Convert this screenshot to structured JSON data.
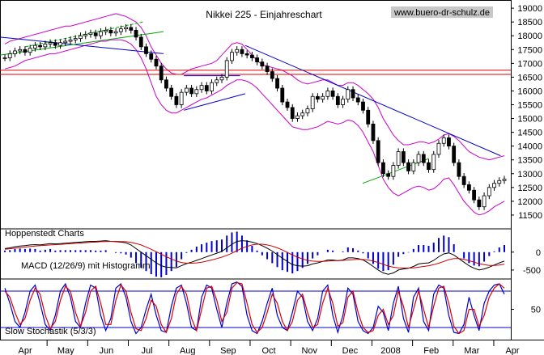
{
  "chart_data": {
    "type": "line",
    "title": "Nikkei 225 - Einjahreschart",
    "watermark": "www.buero-dr-schulz.de",
    "source_label": "Hoppenstedt Charts",
    "months": [
      "Apr",
      "May",
      "Jun",
      "Jul",
      "Aug",
      "Sep",
      "Oct",
      "Nov",
      "Dec",
      "2008",
      "Feb",
      "Mar",
      "Apr"
    ],
    "price_panel": {
      "ylim": [
        11000,
        19150
      ],
      "ticks": [
        19000,
        18500,
        18000,
        17500,
        17000,
        16500,
        16000,
        15500,
        15000,
        14500,
        14000,
        13500,
        13000,
        12500,
        12000,
        11500
      ],
      "tick_labels": [
        "19000",
        "18500",
        "18000",
        "17500",
        "17000",
        "16500",
        "16000",
        "15500",
        "15000",
        "14500",
        "14000",
        "13500",
        "13000",
        "12500",
        "12000",
        "11500"
      ],
      "colors": {
        "candles": "#000000",
        "bands": "#cc00cc",
        "trend_upper": "#0000cc",
        "trend_lower": "#00aa00",
        "support": "#dd0000"
      },
      "support_levels": [
        16750,
        16600
      ],
      "trendlines": [
        {
          "color": "#0000cc",
          "points": [
            [
              0,
              17950
            ],
            [
              0.32,
              17350
            ]
          ]
        },
        {
          "color": "#00aa00",
          "points": [
            [
              0,
              17300
            ],
            [
              0.32,
              18150
            ]
          ]
        },
        {
          "color": "#00aa00",
          "dash": true,
          "points": [
            [
              0.05,
              17600
            ],
            [
              0.28,
              18500
            ]
          ]
        },
        {
          "color": "#0000cc",
          "points": [
            [
              0.36,
              15300
            ],
            [
              0.48,
              15900
            ]
          ]
        },
        {
          "color": "#0000cc",
          "points": [
            [
              0.36,
              16550
            ],
            [
              0.47,
              16550
            ]
          ]
        },
        {
          "color": "#0000cc",
          "points": [
            [
              0.48,
              17650
            ],
            [
              0.98,
              13650
            ]
          ]
        },
        {
          "color": "#00aa00",
          "points": [
            [
              0.71,
              12650
            ],
            [
              0.84,
              13550
            ]
          ]
        }
      ],
      "close": [
        17200,
        17350,
        17450,
        17500,
        17400,
        17550,
        17650,
        17600,
        17700,
        17750,
        17650,
        17750,
        17800,
        17850,
        17900,
        18000,
        18050,
        18100,
        18000,
        18150,
        18200,
        18100,
        18150,
        18250,
        18300,
        18200,
        17950,
        17600,
        17350,
        17150,
        16900,
        16400,
        16100,
        15800,
        15500,
        15950,
        16100,
        15900,
        16050,
        16200,
        16000,
        16300,
        16400,
        16500,
        17100,
        17400,
        17500,
        17350,
        17300,
        17200,
        17050,
        16900,
        16700,
        16450,
        16100,
        15600,
        15400,
        15000,
        15100,
        15200,
        15350,
        15800,
        15700,
        15800,
        16000,
        15800,
        15500,
        15700,
        16050,
        15750,
        15600,
        15300,
        14800,
        14200,
        13400,
        13000,
        12900,
        13300,
        13800,
        13400,
        13100,
        13400,
        13700,
        13400,
        13150,
        13700,
        14100,
        14300,
        14000,
        13400,
        12900,
        12600,
        12400,
        12050,
        11800,
        12200,
        12500,
        12650,
        12750,
        12800
      ],
      "upper_band": [
        17700,
        17800,
        17850,
        17900,
        17950,
        18000,
        18050,
        18100,
        18150,
        18200,
        18250,
        18300,
        18350,
        18350,
        18400,
        18450,
        18500,
        18550,
        18600,
        18650,
        18700,
        18750,
        18800,
        18750,
        18700,
        18600,
        18500,
        18300,
        18000,
        17600,
        17300,
        17000,
        16800,
        16650,
        16600,
        16600,
        16700,
        16800,
        16850,
        16900,
        16950,
        17000,
        17100,
        17300,
        17500,
        17700,
        17750,
        17700,
        17500,
        17300,
        17100,
        16950,
        16900,
        16850,
        16800,
        16750,
        16650,
        16550,
        16400,
        16300,
        16250,
        16300,
        16350,
        16400,
        16400,
        16300,
        16200,
        16200,
        16300,
        16300,
        16200,
        16050,
        15900,
        15700,
        15400,
        15000,
        14700,
        14400,
        14200,
        14050,
        14050,
        14100,
        14150,
        14150,
        14100,
        14150,
        14250,
        14400,
        14450,
        14350,
        14200,
        14000,
        13800,
        13700,
        13600,
        13550,
        13500,
        13550,
        13600,
        13650
      ],
      "lower_band": [
        16800,
        16850,
        16900,
        17000,
        17100,
        17150,
        17200,
        17250,
        17300,
        17350,
        17350,
        17400,
        17450,
        17500,
        17550,
        17600,
        17650,
        17700,
        17750,
        17800,
        17800,
        17850,
        17850,
        17850,
        17800,
        17700,
        17500,
        17200,
        16800,
        16300,
        15800,
        15500,
        15300,
        15200,
        15200,
        15300,
        15400,
        15500,
        15600,
        15700,
        15750,
        15850,
        15950,
        16050,
        16200,
        16300,
        16400,
        16400,
        16350,
        16250,
        16100,
        15900,
        15700,
        15500,
        15300,
        15100,
        14900,
        14700,
        14650,
        14600,
        14600,
        14650,
        14700,
        14800,
        14900,
        14850,
        14800,
        14850,
        14950,
        14900,
        14750,
        14500,
        14150,
        13800,
        13300,
        12800,
        12500,
        12300,
        12200,
        12300,
        12400,
        12500,
        12550,
        12500,
        12400,
        12450,
        12600,
        12800,
        12850,
        12600,
        12300,
        12000,
        11800,
        11600,
        11500,
        11550,
        11650,
        11800,
        11900,
        12000
      ]
    },
    "macd_panel": {
      "label": "MACD (12/26/9) mit Histogramm",
      "ticks": [
        0,
        -500
      ],
      "tick_labels": [
        "0",
        "-500"
      ],
      "ylim": [
        -750,
        650
      ],
      "colors": {
        "macd": "#000000",
        "signal": "#cc0000",
        "hist": "#0000cc"
      },
      "macd": [
        100,
        120,
        150,
        170,
        180,
        200,
        210,
        200,
        220,
        240,
        230,
        240,
        250,
        260,
        270,
        280,
        290,
        300,
        300,
        310,
        320,
        300,
        290,
        280,
        260,
        200,
        100,
        0,
        -100,
        -200,
        -300,
        -380,
        -420,
        -430,
        -440,
        -380,
        -320,
        -280,
        -230,
        -180,
        -130,
        -80,
        -30,
        20,
        120,
        220,
        300,
        320,
        310,
        280,
        240,
        180,
        110,
        30,
        -70,
        -170,
        -260,
        -350,
        -380,
        -390,
        -380,
        -330,
        -300,
        -260,
        -220,
        -220,
        -240,
        -220,
        -160,
        -160,
        -180,
        -220,
        -300,
        -400,
        -500,
        -580,
        -620,
        -580,
        -500,
        -470,
        -450,
        -400,
        -330,
        -310,
        -300,
        -230,
        -130,
        -50,
        -20,
        -80,
        -180,
        -280,
        -380,
        -450,
        -500,
        -470,
        -420,
        -360,
        -300,
        -250
      ],
      "signal": [
        80,
        95,
        110,
        125,
        140,
        155,
        170,
        180,
        190,
        200,
        210,
        215,
        225,
        235,
        245,
        255,
        265,
        275,
        280,
        290,
        295,
        300,
        300,
        295,
        290,
        270,
        240,
        200,
        140,
        80,
        10,
        -60,
        -130,
        -190,
        -250,
        -290,
        -310,
        -310,
        -300,
        -280,
        -250,
        -220,
        -180,
        -140,
        -90,
        -30,
        40,
        110,
        160,
        200,
        220,
        220,
        200,
        170,
        120,
        60,
        -10,
        -80,
        -140,
        -190,
        -230,
        -250,
        -260,
        -260,
        -250,
        -240,
        -240,
        -230,
        -220,
        -210,
        -200,
        -205,
        -220,
        -250,
        -290,
        -340,
        -390,
        -420,
        -440,
        -445,
        -445,
        -440,
        -420,
        -400,
        -380,
        -350,
        -310,
        -260,
        -210,
        -180,
        -180,
        -200,
        -240,
        -280,
        -320,
        -350,
        -370,
        -370,
        -360,
        -340
      ]
    },
    "stoch_panel": {
      "label": "Slow Stochastik (5/3/3)",
      "ticks": [
        50
      ],
      "tick_labels": [
        "50"
      ],
      "ylim": [
        0,
        100
      ],
      "levels": [
        80,
        20
      ],
      "colors": {
        "k": "#0000cc",
        "d": "#dd0000",
        "levels": "#0000cc"
      },
      "k": [
        85,
        60,
        30,
        20,
        45,
        80,
        90,
        60,
        25,
        15,
        40,
        80,
        92,
        70,
        30,
        20,
        60,
        90,
        85,
        40,
        15,
        35,
        85,
        92,
        70,
        30,
        10,
        20,
        50,
        75,
        40,
        15,
        12,
        55,
        85,
        90,
        60,
        20,
        15,
        70,
        90,
        85,
        50,
        20,
        60,
        92,
        95,
        88,
        40,
        15,
        10,
        30,
        60,
        85,
        40,
        20,
        15,
        45,
        80,
        70,
        30,
        15,
        35,
        80,
        90,
        40,
        12,
        40,
        85,
        75,
        30,
        15,
        10,
        20,
        55,
        45,
        15,
        60,
        88,
        35,
        12,
        70,
        85,
        30,
        15,
        75,
        90,
        85,
        40,
        12,
        10,
        25,
        70,
        40,
        15,
        60,
        80,
        90,
        92,
        75
      ],
      "d": [
        80,
        70,
        45,
        25,
        35,
        65,
        85,
        75,
        40,
        18,
        30,
        65,
        88,
        80,
        45,
        22,
        45,
        80,
        88,
        60,
        25,
        25,
        65,
        90,
        80,
        45,
        18,
        15,
        35,
        65,
        55,
        25,
        12,
        35,
        75,
        88,
        75,
        35,
        15,
        50,
        85,
        88,
        65,
        30,
        45,
        85,
        94,
        92,
        60,
        25,
        12,
        20,
        45,
        75,
        60,
        30,
        15,
        30,
        65,
        75,
        45,
        20,
        25,
        60,
        85,
        60,
        22,
        28,
        70,
        80,
        45,
        20,
        12,
        15,
        40,
        50,
        25,
        40,
        80,
        55,
        20,
        50,
        80,
        50,
        20,
        55,
        85,
        88,
        60,
        22,
        10,
        15,
        50,
        50,
        22,
        40,
        70,
        85,
        92,
        85
      ]
    }
  }
}
